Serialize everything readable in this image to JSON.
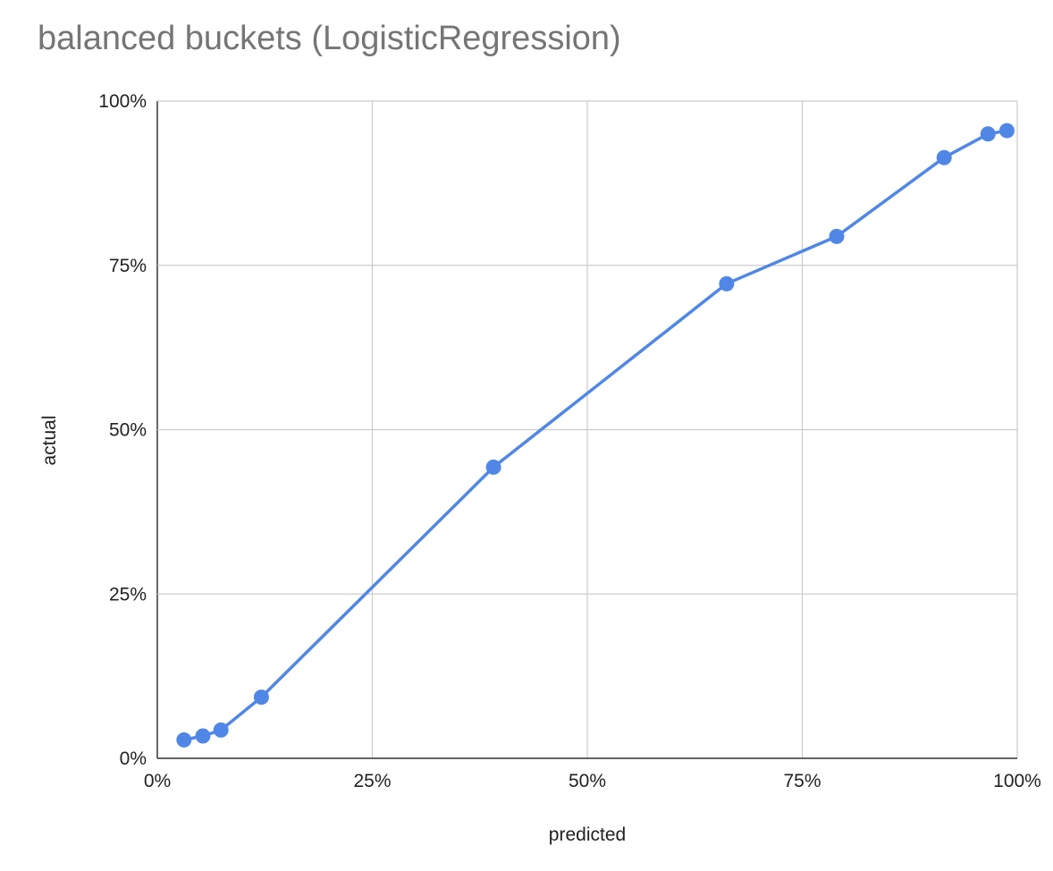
{
  "chart_data": {
    "type": "line",
    "title": "balanced buckets (LogisticRegression)",
    "xlabel": "predicted",
    "ylabel": "actual",
    "xlim": [
      0,
      1
    ],
    "ylim": [
      0,
      1
    ],
    "x_ticks": [
      "0%",
      "25%",
      "50%",
      "75%",
      "100%"
    ],
    "y_ticks": [
      "0%",
      "25%",
      "50%",
      "75%",
      "100%"
    ],
    "grid": true,
    "markers": true,
    "color": "#5087e6",
    "series": [
      {
        "x": [
          0.031,
          0.053,
          0.074,
          0.121,
          0.391,
          0.662,
          0.79,
          0.915,
          0.966,
          0.988
        ],
        "y": [
          0.028,
          0.034,
          0.043,
          0.093,
          0.443,
          0.722,
          0.794,
          0.914,
          0.95,
          0.955
        ]
      }
    ]
  }
}
